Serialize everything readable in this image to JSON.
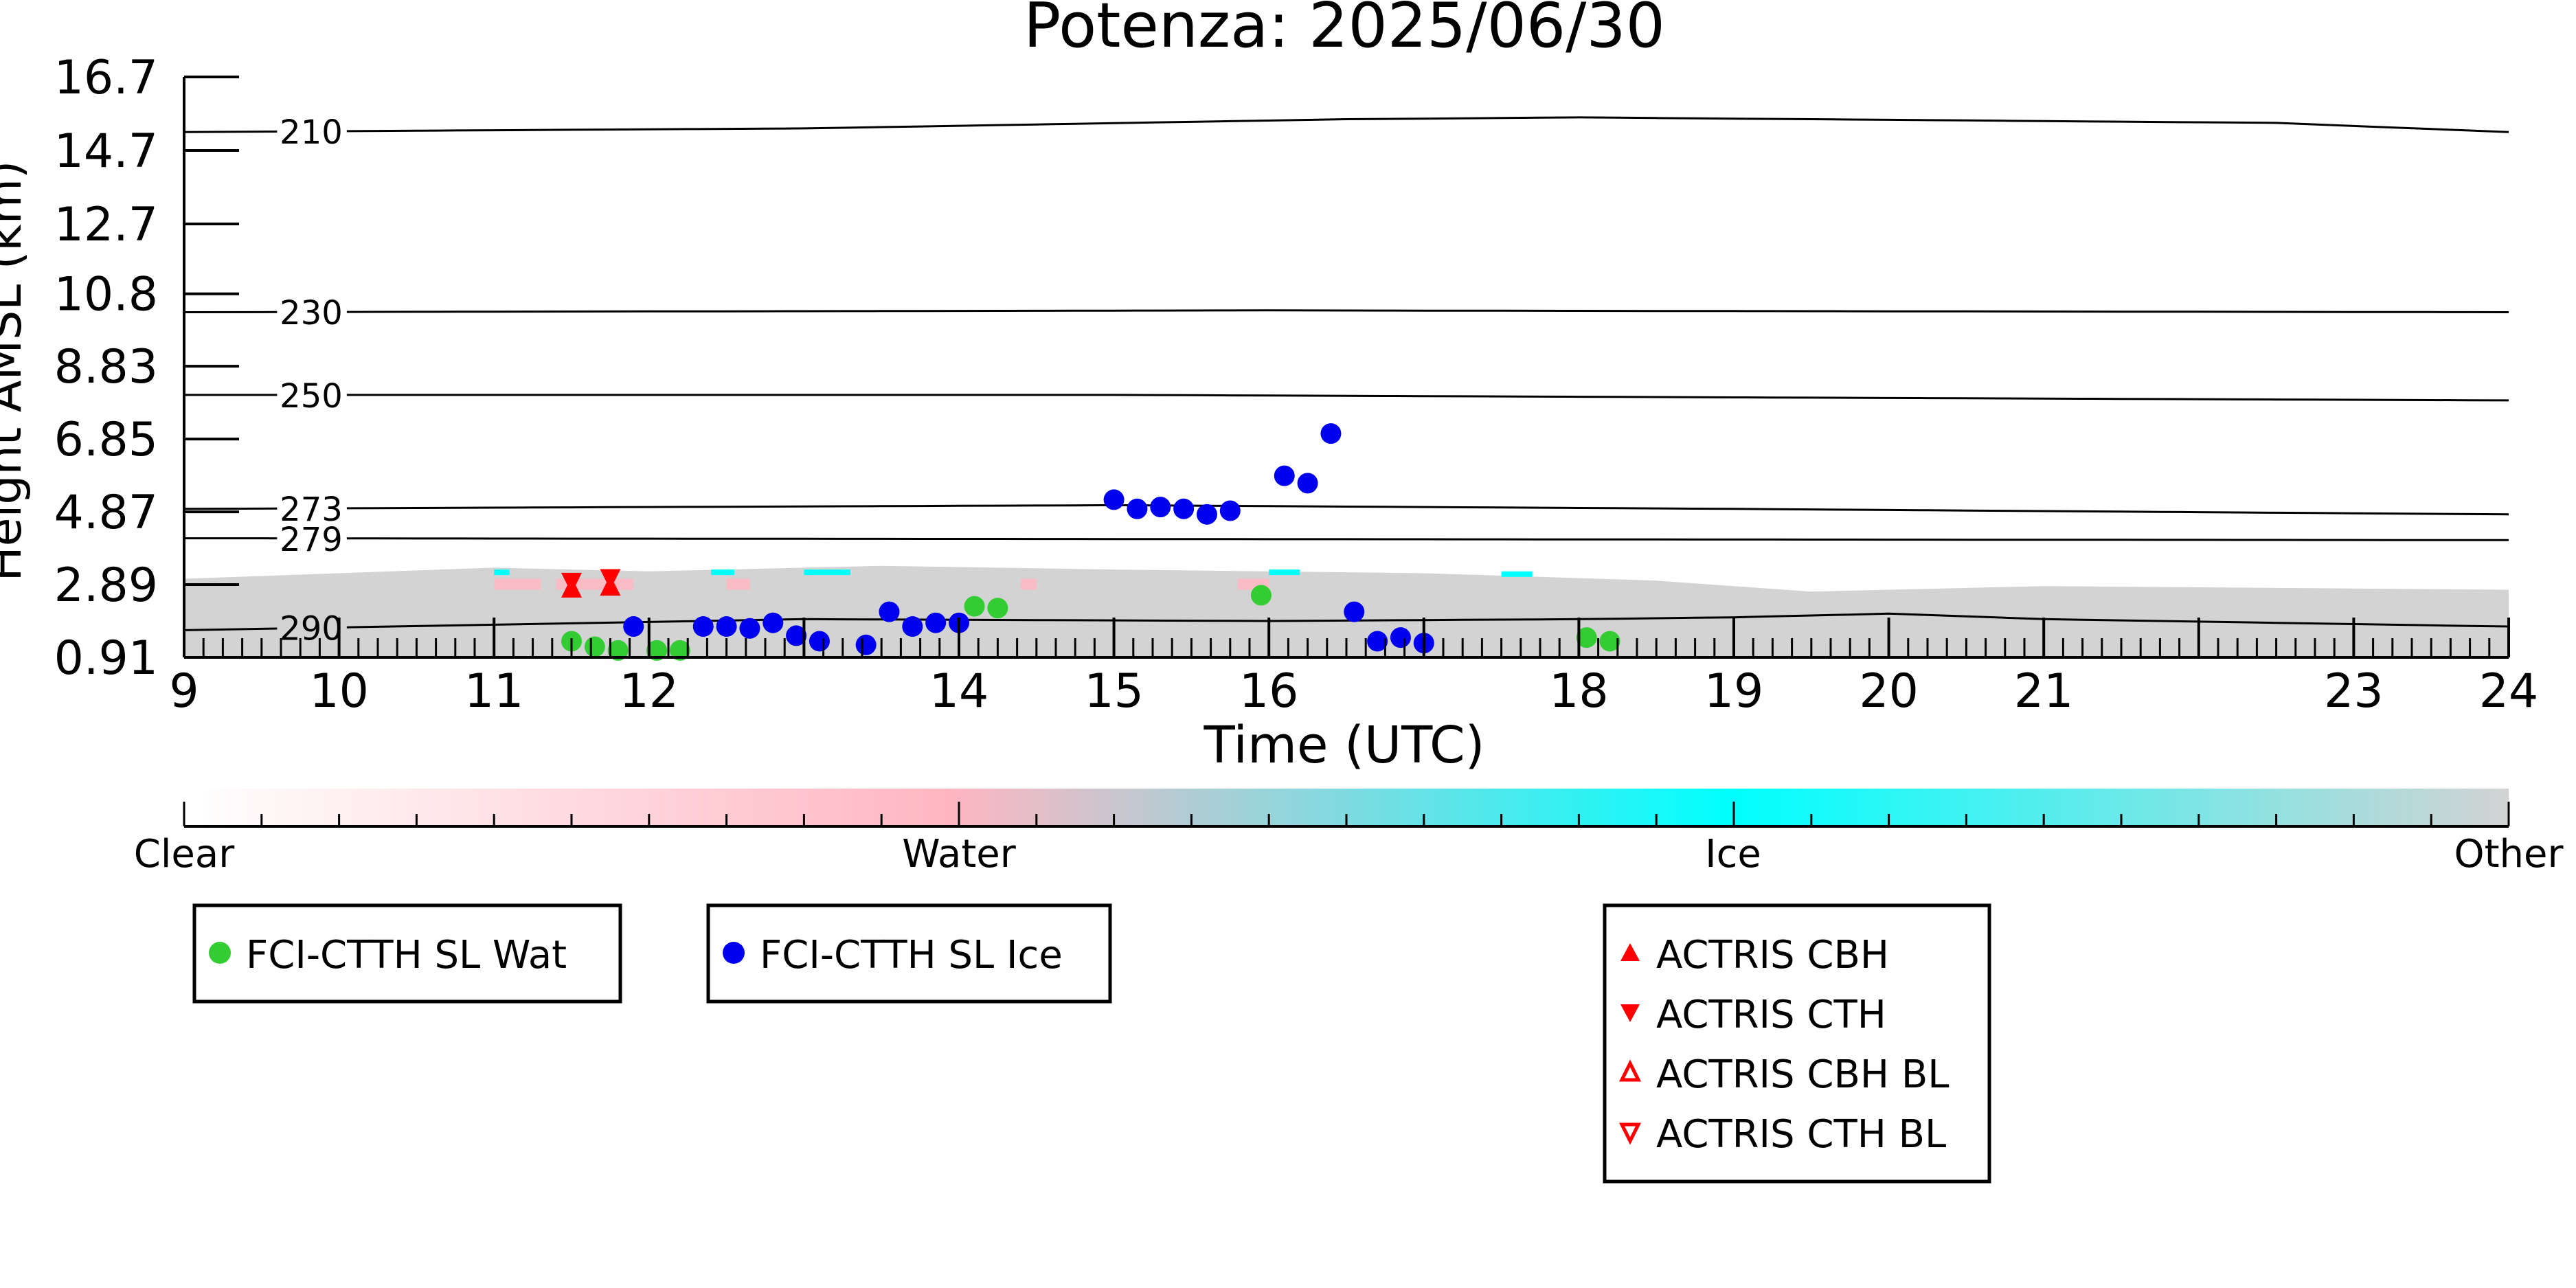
{
  "chart_data": {
    "type": "scatter",
    "title": "Potenza: 2025/06/30",
    "xlabel": "Time (UTC)",
    "ylabel": "Height AMSL (km)",
    "xlim": [
      9,
      24
    ],
    "ylim": [
      0.91,
      16.7
    ],
    "x_ticks": [
      9,
      10,
      11,
      12,
      14,
      15,
      16,
      18,
      19,
      20,
      21,
      23,
      24
    ],
    "x_tick_labels": [
      "9",
      "10",
      "11",
      "12",
      "14",
      "15",
      "16",
      "18",
      "19",
      "20",
      "21",
      "23",
      "24"
    ],
    "y_ticks": [
      0.91,
      2.89,
      4.87,
      6.85,
      8.83,
      10.8,
      12.7,
      14.7,
      16.7
    ],
    "y_tick_labels": [
      "0.91",
      "2.89",
      "4.87",
      "6.85",
      "8.83",
      "10.8",
      "12.7",
      "14.7",
      "16.7"
    ],
    "grid": false,
    "isotherms": [
      {
        "label": "210",
        "heights": [
          [
            9,
            15.2
          ],
          [
            13,
            15.3
          ],
          [
            16.5,
            15.55
          ],
          [
            18,
            15.6
          ],
          [
            22.5,
            15.45
          ],
          [
            24,
            15.2
          ]
        ]
      },
      {
        "label": "230",
        "heights": [
          [
            9,
            10.3
          ],
          [
            16,
            10.35
          ],
          [
            24,
            10.3
          ]
        ]
      },
      {
        "label": "250",
        "heights": [
          [
            9,
            8.05
          ],
          [
            15,
            8.05
          ],
          [
            24,
            7.9
          ]
        ]
      },
      {
        "label": "273",
        "heights": [
          [
            9,
            4.95
          ],
          [
            15,
            5.05
          ],
          [
            19,
            4.95
          ],
          [
            24,
            4.8
          ]
        ]
      },
      {
        "label": "279",
        "heights": [
          [
            9,
            4.15
          ],
          [
            24,
            4.1
          ]
        ]
      },
      {
        "label": "290",
        "heights": [
          [
            9,
            1.65
          ],
          [
            11,
            1.8
          ],
          [
            13,
            1.95
          ],
          [
            16,
            1.9
          ],
          [
            18,
            1.95
          ],
          [
            19,
            2.0
          ],
          [
            20,
            2.1
          ],
          [
            21,
            1.95
          ],
          [
            24,
            1.75
          ]
        ]
      }
    ],
    "series": [
      {
        "name": "FCI-CTTH SL Wat",
        "color": "#33cc33",
        "marker": "circle",
        "points": [
          [
            11.5,
            1.35
          ],
          [
            11.65,
            1.2
          ],
          [
            11.8,
            1.1
          ],
          [
            12.05,
            1.1
          ],
          [
            12.2,
            1.1
          ],
          [
            14.1,
            2.3
          ],
          [
            14.25,
            2.25
          ],
          [
            15.95,
            2.6
          ],
          [
            18.05,
            1.45
          ],
          [
            18.2,
            1.35
          ]
        ]
      },
      {
        "name": "FCI-CTTH SL Ice",
        "color": "#0000ee",
        "marker": "circle",
        "points": [
          [
            11.9,
            1.75
          ],
          [
            12.35,
            1.75
          ],
          [
            12.5,
            1.75
          ],
          [
            12.65,
            1.7
          ],
          [
            12.8,
            1.85
          ],
          [
            12.95,
            1.5
          ],
          [
            13.1,
            1.35
          ],
          [
            13.4,
            1.25
          ],
          [
            13.55,
            2.15
          ],
          [
            13.7,
            1.75
          ],
          [
            13.85,
            1.85
          ],
          [
            14.0,
            1.85
          ],
          [
            15.0,
            5.2
          ],
          [
            15.15,
            4.95
          ],
          [
            15.3,
            5.0
          ],
          [
            15.45,
            4.95
          ],
          [
            15.6,
            4.8
          ],
          [
            15.75,
            4.9
          ],
          [
            16.1,
            5.85
          ],
          [
            16.25,
            5.65
          ],
          [
            16.4,
            7.0
          ],
          [
            16.55,
            2.15
          ],
          [
            16.7,
            1.35
          ],
          [
            16.85,
            1.45
          ],
          [
            17.0,
            1.3
          ]
        ]
      },
      {
        "name": "ACTRIS CBH",
        "color": "#ff0000",
        "marker": "triangle-up",
        "points": [
          [
            11.5,
            2.8
          ],
          [
            11.75,
            2.85
          ]
        ]
      },
      {
        "name": "ACTRIS CTH",
        "color": "#ff0000",
        "marker": "triangle-down",
        "points": [
          [
            11.5,
            2.95
          ],
          [
            11.75,
            3.05
          ]
        ]
      },
      {
        "name": "ACTRIS CBH BL",
        "color": "#ff0000",
        "marker": "triangle-up-open",
        "points": []
      },
      {
        "name": "ACTRIS CTH BL",
        "color": "#ff0000",
        "marker": "triangle-down-open",
        "points": []
      }
    ],
    "classification_colorbar": {
      "labels": [
        "Clear",
        "Water",
        "Ice",
        "Other"
      ],
      "colors": [
        "#ffffff",
        "#ffb6c1",
        "#00ffff",
        "#d3d3d3"
      ]
    },
    "background_cloud_mask": {
      "color": "#d3d3d3",
      "from_height": 0.91,
      "to_height": 3.2
    }
  }
}
